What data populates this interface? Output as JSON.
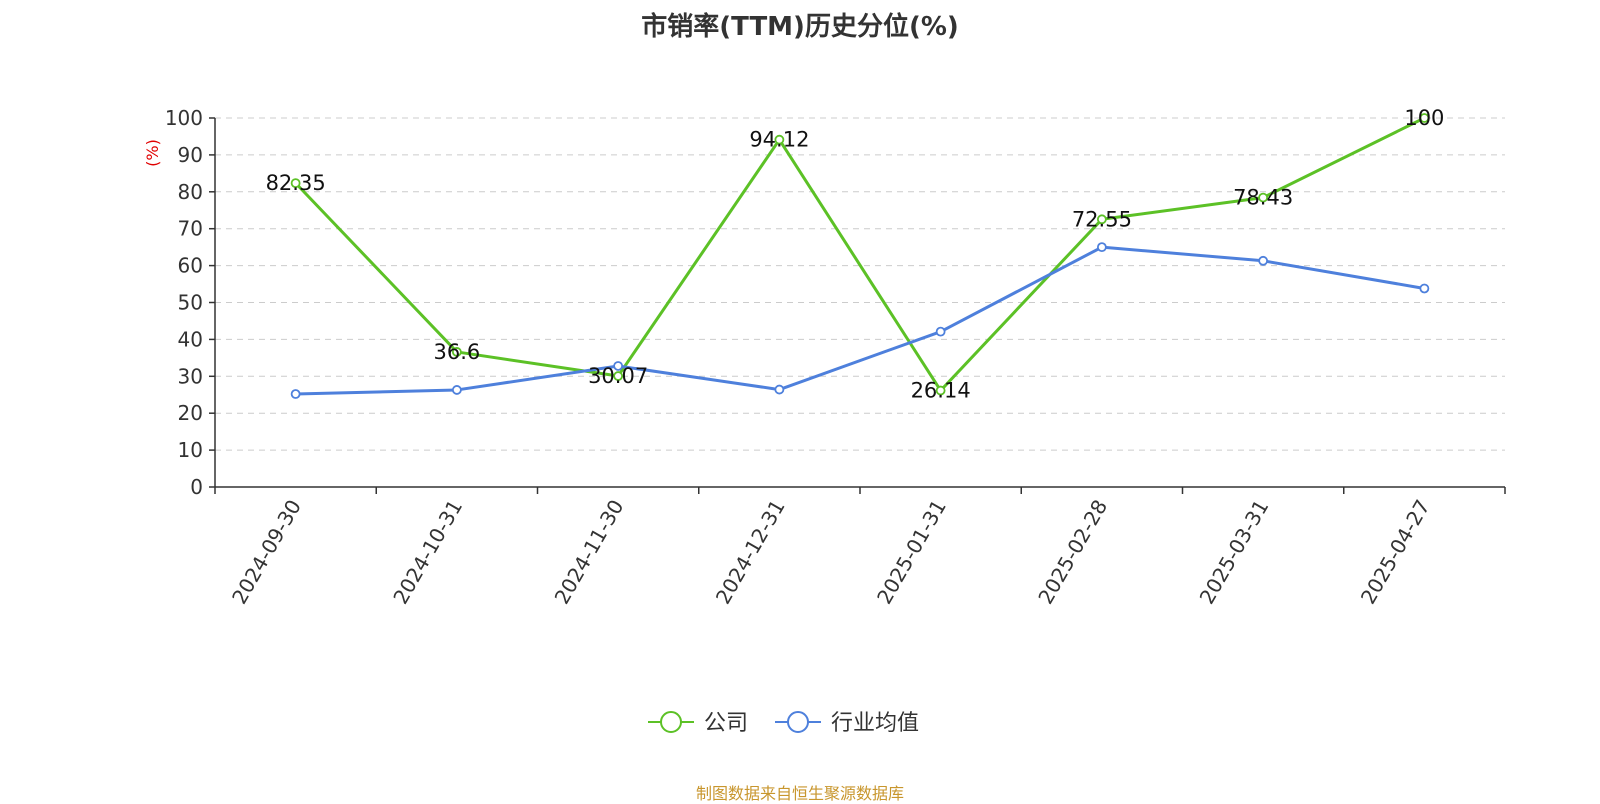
{
  "chart_data": {
    "type": "line",
    "title": "市销率(TTM)历史分位(%)",
    "ylabel": "(%)",
    "xlabel": "",
    "categories": [
      "2024-09-30",
      "2024-10-31",
      "2024-11-30",
      "2024-12-31",
      "2025-01-31",
      "2025-02-28",
      "2025-03-31",
      "2025-04-27"
    ],
    "ylim": [
      0,
      100
    ],
    "yticks": [
      0,
      10,
      20,
      30,
      40,
      50,
      60,
      70,
      80,
      90,
      100
    ],
    "grid": true,
    "legend_position": "bottom",
    "series": [
      {
        "name": "公司",
        "color": "#5cc126",
        "values": [
          82.35,
          36.6,
          30.07,
          94.12,
          26.14,
          72.55,
          78.43,
          100
        ],
        "labels": [
          "82.35",
          "36.6",
          "30.07",
          "94.12",
          "26.14",
          "72.55",
          "78.43",
          "100"
        ]
      },
      {
        "name": "行业均值",
        "color": "#4e80dc",
        "values": [
          25.2,
          26.3,
          32.8,
          26.4,
          42.1,
          65.0,
          61.3,
          53.8
        ]
      }
    ],
    "unit_color": "#e00000"
  },
  "source": "制图数据来自恒生聚源数据库"
}
